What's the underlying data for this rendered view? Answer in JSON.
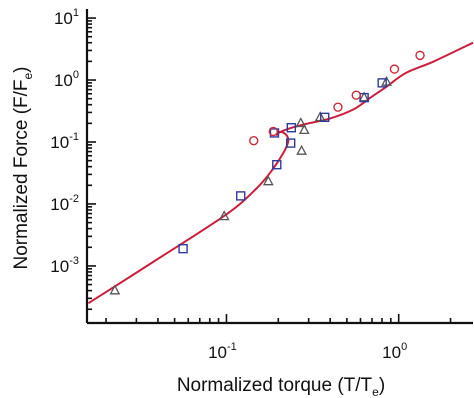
{
  "chart_data": {
    "type": "scatter",
    "title": "",
    "xlabel_main": "Normalized torque (T/T",
    "xlabel_sub": "e",
    "xlabel_end": ")",
    "ylabel_main": "Normalized Force  (F/F",
    "ylabel_sub": "e",
    "ylabel_end": ")",
    "x_scale": "log",
    "y_scale": "log",
    "xlim": [
      0.0155,
      2.7
    ],
    "ylim": [
      0.00012,
      14
    ],
    "grid": false,
    "legend": "none",
    "x_ticks": [
      {
        "value": 0.1,
        "base": "10",
        "exp": "-1"
      },
      {
        "value": 1,
        "base": "10",
        "exp": "0"
      }
    ],
    "y_ticks": [
      {
        "value": 0.001,
        "base": "10",
        "exp": "-3"
      },
      {
        "value": 0.01,
        "base": "10",
        "exp": "-2"
      },
      {
        "value": 0.1,
        "base": "10",
        "exp": "-1"
      },
      {
        "value": 1,
        "base": "10",
        "exp": "0"
      },
      {
        "value": 10,
        "base": "10",
        "exp": "1"
      }
    ],
    "series": [
      {
        "marker": "triangle",
        "color": "#555555",
        "points": [
          [
            0.0225,
            0.0004
          ],
          [
            0.097,
            0.0063
          ],
          [
            0.175,
            0.023
          ],
          [
            0.273,
            0.0715
          ],
          [
            0.27,
            0.2
          ],
          [
            0.283,
            0.155
          ],
          [
            0.35,
            0.25
          ],
          [
            0.63,
            0.52
          ],
          [
            0.85,
            0.93
          ]
        ]
      },
      {
        "marker": "square",
        "color": "#2e3a9a",
        "points": [
          [
            0.056,
            0.0019
          ],
          [
            0.121,
            0.0135
          ],
          [
            0.196,
            0.043
          ],
          [
            0.19,
            0.14
          ],
          [
            0.238,
            0.17
          ],
          [
            0.236,
            0.096
          ],
          [
            0.372,
            0.25
          ],
          [
            0.63,
            0.52
          ],
          [
            0.802,
            0.9
          ]
        ]
      },
      {
        "marker": "circle",
        "color": "#cc2a3a",
        "points": [
          [
            0.144,
            0.105
          ],
          [
            0.187,
            0.148
          ],
          [
            0.444,
            0.365
          ],
          [
            0.567,
            0.57
          ],
          [
            0.945,
            1.5
          ],
          [
            1.33,
            2.5
          ]
        ]
      }
    ],
    "fit_curve": {
      "color": "#cc1f3c",
      "points": [
        [
          0.0158,
          0.00025
        ],
        [
          0.04,
          0.0013
        ],
        [
          0.1,
          0.0068
        ],
        [
          0.15,
          0.018
        ],
        [
          0.185,
          0.036
        ],
        [
          0.215,
          0.068
        ],
        [
          0.228,
          0.1
        ],
        [
          0.225,
          0.125
        ],
        [
          0.212,
          0.143
        ],
        [
          0.2,
          0.143
        ],
        [
          0.196,
          0.13
        ],
        [
          0.205,
          0.145
        ],
        [
          0.24,
          0.17
        ],
        [
          0.3,
          0.2
        ],
        [
          0.4,
          0.24
        ],
        [
          0.55,
          0.34
        ],
        [
          0.7,
          0.54
        ],
        [
          0.85,
          0.78
        ],
        [
          1.1,
          1.3
        ],
        [
          1.6,
          2.0
        ],
        [
          2.7,
          4.0
        ]
      ]
    }
  }
}
